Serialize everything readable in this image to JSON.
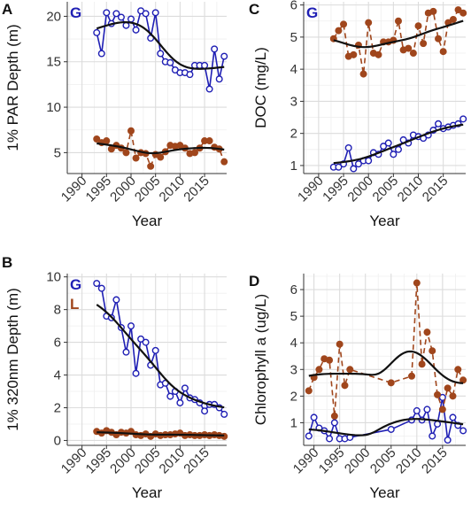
{
  "chart_data": [
    {
      "panel": "A",
      "type": "line",
      "xlabel": "Year",
      "ylabel": "1% PAR Depth (m)",
      "xlim": [
        1987,
        2019.5
      ],
      "ylim": [
        2.7,
        21.6
      ],
      "xticks": [
        1990,
        1995,
        2000,
        2005,
        2010,
        2015
      ],
      "yticks": [
        5,
        10,
        15,
        20
      ],
      "legend_labels": [
        "G"
      ],
      "grid": true,
      "series": [
        {
          "name": "G",
          "color": "#1f1fb4",
          "style": "solid",
          "marker": "open",
          "x": [
            1993,
            1994,
            1995,
            1996,
            1997,
            1998,
            1999,
            2000,
            2001,
            2002,
            2003,
            2004,
            2005,
            2006,
            2007,
            2008,
            2009,
            2010,
            2011,
            2012,
            2013,
            2014,
            2015,
            2016,
            2017,
            2018,
            2019
          ],
          "y": [
            18.2,
            15.9,
            20.4,
            19.2,
            20.3,
            19.9,
            19.0,
            19.7,
            18.5,
            20.6,
            20.3,
            17.6,
            20.4,
            15.9,
            15.0,
            14.9,
            14.1,
            13.8,
            13.8,
            13.6,
            14.6,
            14.6,
            14.6,
            12.0,
            16.4,
            13.1,
            15.6
          ]
        },
        {
          "name": "L",
          "color": "#a0461c",
          "style": "dashed",
          "marker": "filled",
          "x": [
            1993,
            1994,
            1995,
            1996,
            1997,
            1998,
            1999,
            2000,
            2001,
            2002,
            2003,
            2004,
            2005,
            2006,
            2007,
            2008,
            2009,
            2010,
            2011,
            2012,
            2013,
            2014,
            2015,
            2016,
            2017,
            2018,
            2019
          ],
          "y": [
            6.5,
            6.1,
            6.3,
            5.4,
            5.8,
            5.5,
            5.0,
            7.4,
            4.4,
            5.0,
            4.9,
            3.5,
            4.8,
            4.5,
            5.1,
            5.8,
            5.7,
            5.8,
            5.5,
            4.9,
            5.0,
            5.5,
            6.3,
            6.3,
            5.6,
            5.4,
            4.0
          ]
        }
      ]
    },
    {
      "panel": "B",
      "type": "line",
      "xlabel": "Year",
      "ylabel": "1% 320nm Depth (m)",
      "xlim": [
        1987,
        2019.5
      ],
      "ylim": [
        -0.3,
        10.2
      ],
      "xticks": [
        1990,
        1995,
        2000,
        2005,
        2010,
        2015
      ],
      "yticks": [
        0,
        2,
        4,
        6,
        8,
        10
      ],
      "legend_labels": [
        "G",
        "L"
      ],
      "grid": true,
      "series": [
        {
          "name": "G",
          "color": "#1f1fb4",
          "style": "solid",
          "marker": "open",
          "x": [
            1993,
            1994,
            1995,
            1996,
            1997,
            1998,
            1999,
            2000,
            2001,
            2002,
            2003,
            2004,
            2005,
            2006,
            2007,
            2008,
            2009,
            2010,
            2011,
            2012,
            2013,
            2014,
            2015,
            2016,
            2017,
            2018,
            2019
          ],
          "y": [
            9.6,
            9.3,
            7.6,
            7.5,
            8.6,
            6.9,
            5.4,
            7.0,
            4.1,
            6.2,
            6.0,
            4.6,
            5.5,
            3.4,
            3.5,
            2.7,
            3.0,
            2.3,
            3.2,
            2.6,
            2.5,
            2.3,
            1.8,
            2.2,
            2.2,
            2.0,
            1.6
          ]
        },
        {
          "name": "L",
          "color": "#a0461c",
          "style": "dashed",
          "marker": "filled",
          "x": [
            1993,
            1994,
            1995,
            1996,
            1997,
            1998,
            1999,
            2000,
            2001,
            2002,
            2003,
            2004,
            2005,
            2006,
            2007,
            2008,
            2009,
            2010,
            2011,
            2012,
            2013,
            2014,
            2015,
            2016,
            2017,
            2018,
            2019
          ],
          "y": [
            0.55,
            0.45,
            0.6,
            0.5,
            0.35,
            0.5,
            0.45,
            0.55,
            0.35,
            0.3,
            0.4,
            0.25,
            0.4,
            0.3,
            0.35,
            0.35,
            0.4,
            0.45,
            0.3,
            0.35,
            0.3,
            0.3,
            0.35,
            0.3,
            0.35,
            0.3,
            0.25
          ]
        }
      ]
    },
    {
      "panel": "C",
      "type": "line",
      "xlabel": "Year",
      "ylabel": "DOC (mg/L)",
      "xlim": [
        1987,
        2019.5
      ],
      "ylim": [
        0.75,
        6.1
      ],
      "xticks": [
        1990,
        1995,
        2000,
        2005,
        2010,
        2015
      ],
      "yticks": [
        1,
        2,
        3,
        4,
        5,
        6
      ],
      "legend_labels": [
        "G"
      ],
      "grid": true,
      "series": [
        {
          "name": "G",
          "color": "#1f1fb4",
          "style": "solid",
          "marker": "open",
          "x": [
            1993,
            1994,
            1995,
            1996,
            1997,
            1998,
            1999,
            2000,
            2001,
            2002,
            2003,
            2004,
            2005,
            2006,
            2007,
            2008,
            2009,
            2010,
            2011,
            2012,
            2013,
            2014,
            2015,
            2016,
            2017,
            2018,
            2019
          ],
          "y": [
            0.95,
            0.95,
            1.05,
            1.55,
            0.9,
            1.05,
            1.15,
            1.15,
            1.4,
            1.35,
            1.6,
            1.7,
            1.35,
            1.5,
            1.8,
            1.7,
            1.95,
            1.9,
            1.85,
            1.95,
            2.1,
            2.3,
            2.15,
            2.2,
            2.25,
            2.3,
            2.45
          ]
        },
        {
          "name": "L",
          "color": "#a0461c",
          "style": "dashed",
          "marker": "filled",
          "x": [
            1993,
            1994,
            1995,
            1996,
            1997,
            1998,
            1999,
            2000,
            2001,
            2002,
            2003,
            2004,
            2005,
            2006,
            2007,
            2008,
            2009,
            2010,
            2011,
            2012,
            2013,
            2014,
            2015,
            2016,
            2017,
            2018,
            2019
          ],
          "y": [
            4.95,
            5.2,
            5.4,
            4.4,
            4.45,
            4.75,
            3.85,
            5.45,
            4.5,
            4.45,
            4.85,
            4.85,
            4.9,
            5.5,
            4.6,
            4.65,
            4.5,
            5.35,
            4.8,
            5.75,
            5.8,
            4.95,
            4.55,
            5.45,
            5.55,
            5.85,
            5.75
          ]
        }
      ]
    },
    {
      "panel": "D",
      "type": "line",
      "xlabel": "Year",
      "ylabel": "Chlorophyll a (ug/L)",
      "xlim": [
        1988,
        2019.5
      ],
      "ylim": [
        0.15,
        6.6
      ],
      "xticks": [
        1990,
        1995,
        2000,
        2005,
        2010,
        2015
      ],
      "yticks": [
        1,
        2,
        3,
        4,
        5,
        6
      ],
      "legend_labels": [],
      "grid": true,
      "series": [
        {
          "name": "G",
          "color": "#1f1fb4",
          "style": "solid",
          "marker": "open",
          "x": [
            1989,
            1990,
            1991,
            1992,
            1993,
            1994,
            1995,
            1996,
            1997,
            2005,
            2009,
            2010,
            2011,
            2012,
            2013,
            2014,
            2015,
            2016,
            2017,
            2018,
            2019
          ],
          "y": [
            0.5,
            1.2,
            0.8,
            0.7,
            0.4,
            1.0,
            0.4,
            0.4,
            0.45,
            0.75,
            1.1,
            1.45,
            1.1,
            1.5,
            0.5,
            0.95,
            1.95,
            0.35,
            1.2,
            0.9,
            0.7
          ]
        },
        {
          "name": "L",
          "color": "#a0461c",
          "style": "dashed",
          "marker": "filled",
          "x": [
            1989,
            1990,
            1991,
            1992,
            1993,
            1994,
            1995,
            1996,
            1997,
            2005,
            2009,
            2010,
            2011,
            2012,
            2013,
            2014,
            2015,
            2016,
            2017,
            2018,
            2019
          ],
          "y": [
            2.2,
            2.7,
            3.0,
            3.4,
            3.35,
            1.25,
            3.95,
            2.4,
            3.0,
            2.5,
            2.75,
            6.25,
            3.2,
            4.4,
            3.7,
            2.05,
            1.5,
            2.3,
            2.0,
            3.0,
            2.6
          ]
        }
      ]
    }
  ]
}
